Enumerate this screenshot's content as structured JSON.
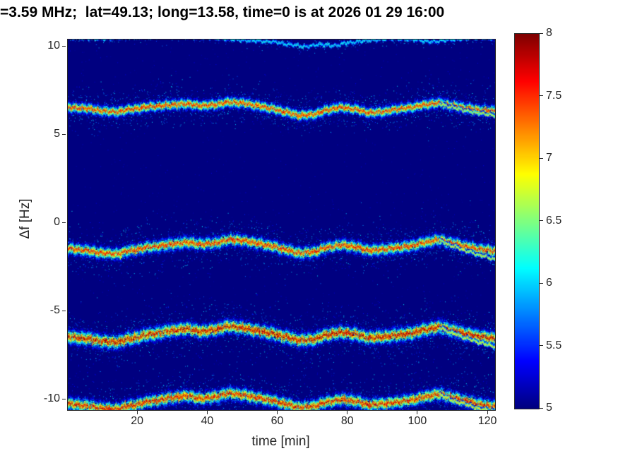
{
  "figure": {
    "background": "#ffffff",
    "frame_color": "#262626",
    "title_color": "#000000"
  },
  "chart_data": {
    "type": "heatmap",
    "subtype": "doppler-spectrogram",
    "title": "=3.59 MHz;  lat=49.13; long=13.58, time=0 is at 2026 01 29 16:00",
    "xlabel": "time [min]",
    "ylabel": "Δf [Hz]",
    "xlim": [
      0,
      122
    ],
    "ylim": [
      -10.6,
      10.4
    ],
    "xticks": [
      20,
      40,
      60,
      80,
      100,
      120
    ],
    "yticks": [
      10,
      5,
      0,
      -5,
      -10
    ],
    "grid": false,
    "legend": "none",
    "colormap": "jet",
    "background_value": 5,
    "colorbar": {
      "min": 5,
      "max": 8,
      "ticks": [
        8,
        7.5,
        7,
        6.5,
        6,
        5.5,
        5
      ]
    },
    "traces": [
      {
        "name": "trace-top-faint",
        "peak": 6.2,
        "spread": 0.07,
        "density": 4,
        "points": [
          [
            0,
            10.5
          ],
          [
            10,
            10.45
          ],
          [
            20,
            10.55
          ],
          [
            30,
            10.6
          ],
          [
            40,
            10.5
          ],
          [
            46,
            10.42
          ],
          [
            52,
            10.34
          ],
          [
            58,
            10.28
          ],
          [
            64,
            10.1
          ],
          [
            68,
            10.0
          ],
          [
            72,
            10.12
          ],
          [
            76,
            10.05
          ],
          [
            80,
            10.22
          ],
          [
            86,
            10.35
          ],
          [
            92,
            10.45
          ],
          [
            98,
            10.4
          ],
          [
            104,
            10.28
          ],
          [
            110,
            10.4
          ],
          [
            116,
            10.5
          ],
          [
            122,
            10.45
          ]
        ]
      },
      {
        "name": "trace-plus6p5",
        "peak": 7.7,
        "spread": 0.22,
        "density": 12,
        "points": [
          [
            0,
            6.55
          ],
          [
            5,
            6.5
          ],
          [
            10,
            6.35
          ],
          [
            14,
            6.3
          ],
          [
            18,
            6.45
          ],
          [
            24,
            6.6
          ],
          [
            30,
            6.7
          ],
          [
            34,
            6.75
          ],
          [
            38,
            6.65
          ],
          [
            42,
            6.7
          ],
          [
            46,
            6.85
          ],
          [
            50,
            6.8
          ],
          [
            54,
            6.65
          ],
          [
            58,
            6.5
          ],
          [
            62,
            6.3
          ],
          [
            66,
            6.1
          ],
          [
            70,
            6.15
          ],
          [
            74,
            6.4
          ],
          [
            78,
            6.55
          ],
          [
            82,
            6.45
          ],
          [
            86,
            6.25
          ],
          [
            90,
            6.3
          ],
          [
            94,
            6.45
          ],
          [
            98,
            6.55
          ],
          [
            102,
            6.7
          ],
          [
            106,
            6.8
          ],
          [
            110,
            6.65
          ],
          [
            114,
            6.5
          ],
          [
            118,
            6.4
          ],
          [
            122,
            6.35
          ]
        ]
      },
      {
        "name": "trace-plus6p5-branch",
        "peak": 7.0,
        "spread": 0.08,
        "density": 5,
        "points": [
          [
            106,
            6.75
          ],
          [
            110,
            6.55
          ],
          [
            114,
            6.35
          ],
          [
            118,
            6.2
          ],
          [
            122,
            6.1
          ]
        ]
      },
      {
        "name": "trace-minus1p2",
        "peak": 7.7,
        "spread": 0.26,
        "density": 12,
        "points": [
          [
            0,
            -1.45
          ],
          [
            5,
            -1.55
          ],
          [
            10,
            -1.7
          ],
          [
            14,
            -1.75
          ],
          [
            18,
            -1.55
          ],
          [
            24,
            -1.35
          ],
          [
            30,
            -1.2
          ],
          [
            34,
            -1.1
          ],
          [
            38,
            -1.2
          ],
          [
            42,
            -1.15
          ],
          [
            46,
            -0.95
          ],
          [
            50,
            -1.0
          ],
          [
            54,
            -1.15
          ],
          [
            58,
            -1.3
          ],
          [
            62,
            -1.5
          ],
          [
            66,
            -1.7
          ],
          [
            70,
            -1.65
          ],
          [
            74,
            -1.4
          ],
          [
            78,
            -1.25
          ],
          [
            82,
            -1.35
          ],
          [
            86,
            -1.55
          ],
          [
            90,
            -1.5
          ],
          [
            94,
            -1.4
          ],
          [
            98,
            -1.3
          ],
          [
            102,
            -1.1
          ],
          [
            106,
            -0.95
          ],
          [
            110,
            -1.15
          ],
          [
            114,
            -1.35
          ],
          [
            118,
            -1.5
          ],
          [
            122,
            -1.6
          ]
        ]
      },
      {
        "name": "trace-minus1p2-branch",
        "peak": 7.0,
        "spread": 0.08,
        "density": 5,
        "points": [
          [
            106,
            -1.0
          ],
          [
            110,
            -1.3
          ],
          [
            114,
            -1.6
          ],
          [
            118,
            -1.85
          ],
          [
            122,
            -2.05
          ]
        ]
      },
      {
        "name": "trace-minus6",
        "peak": 7.95,
        "spread": 0.3,
        "density": 14,
        "points": [
          [
            0,
            -6.45
          ],
          [
            5,
            -6.55
          ],
          [
            10,
            -6.7
          ],
          [
            14,
            -6.75
          ],
          [
            18,
            -6.55
          ],
          [
            24,
            -6.3
          ],
          [
            30,
            -6.1
          ],
          [
            34,
            -6.0
          ],
          [
            38,
            -6.15
          ],
          [
            42,
            -6.05
          ],
          [
            46,
            -5.85
          ],
          [
            50,
            -5.95
          ],
          [
            54,
            -6.1
          ],
          [
            58,
            -6.25
          ],
          [
            62,
            -6.45
          ],
          [
            66,
            -6.65
          ],
          [
            70,
            -6.6
          ],
          [
            74,
            -6.35
          ],
          [
            78,
            -6.2
          ],
          [
            82,
            -6.3
          ],
          [
            86,
            -6.5
          ],
          [
            90,
            -6.45
          ],
          [
            94,
            -6.35
          ],
          [
            98,
            -6.25
          ],
          [
            102,
            -6.05
          ],
          [
            106,
            -5.9
          ],
          [
            110,
            -6.1
          ],
          [
            114,
            -6.3
          ],
          [
            118,
            -6.45
          ],
          [
            122,
            -6.55
          ]
        ]
      },
      {
        "name": "trace-minus6-branch",
        "peak": 7.0,
        "spread": 0.1,
        "density": 5,
        "points": [
          [
            106,
            -5.95
          ],
          [
            110,
            -6.25
          ],
          [
            114,
            -6.55
          ],
          [
            118,
            -6.8
          ],
          [
            122,
            -7.0
          ]
        ]
      },
      {
        "name": "trace-minus10",
        "peak": 7.8,
        "spread": 0.28,
        "density": 12,
        "points": [
          [
            0,
            -10.25
          ],
          [
            5,
            -10.35
          ],
          [
            10,
            -10.5
          ],
          [
            14,
            -10.55
          ],
          [
            18,
            -10.35
          ],
          [
            24,
            -10.1
          ],
          [
            30,
            -9.9
          ],
          [
            34,
            -9.8
          ],
          [
            38,
            -9.95
          ],
          [
            42,
            -9.85
          ],
          [
            46,
            -9.65
          ],
          [
            50,
            -9.75
          ],
          [
            54,
            -9.9
          ],
          [
            58,
            -10.05
          ],
          [
            62,
            -10.25
          ],
          [
            66,
            -10.45
          ],
          [
            70,
            -10.4
          ],
          [
            74,
            -10.15
          ],
          [
            78,
            -10.0
          ],
          [
            82,
            -10.1
          ],
          [
            86,
            -10.3
          ],
          [
            90,
            -10.25
          ],
          [
            94,
            -10.15
          ],
          [
            98,
            -10.05
          ],
          [
            102,
            -9.85
          ],
          [
            106,
            -9.7
          ],
          [
            110,
            -9.9
          ],
          [
            114,
            -10.1
          ],
          [
            118,
            -10.3
          ],
          [
            122,
            -10.4
          ]
        ]
      },
      {
        "name": "trace-minus10-branch",
        "peak": 7.0,
        "spread": 0.1,
        "density": 4,
        "points": [
          [
            106,
            -9.75
          ],
          [
            112,
            -10.2
          ],
          [
            118,
            -10.55
          ],
          [
            122,
            -10.7
          ]
        ]
      }
    ]
  }
}
